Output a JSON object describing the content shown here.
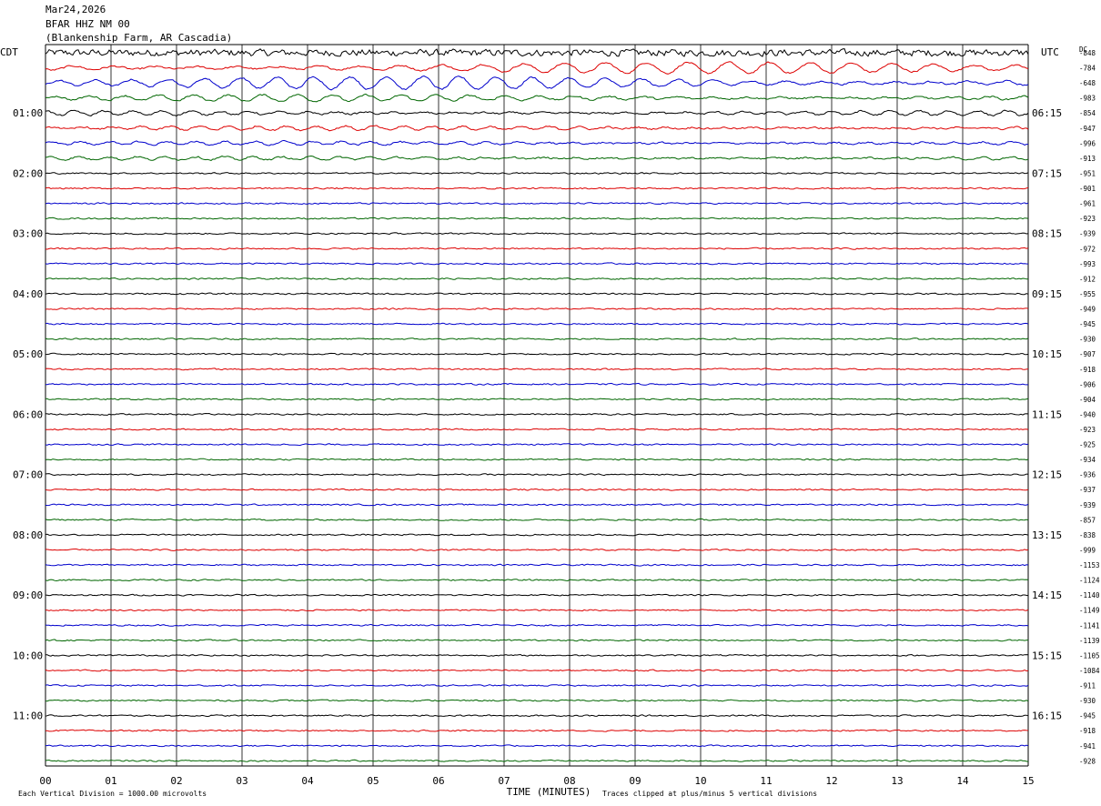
{
  "header": {
    "date": "Mar24,2026",
    "station": "BFAR HHZ NM 00",
    "location": "(Blankenship Farm, AR Cascadia)"
  },
  "chart_data": {
    "type": "line",
    "title": "BFAR HHZ NM 00",
    "left_timezone": "CDT",
    "right_timezone": "UTC",
    "dc_label": "DC",
    "xlabel": "TIME (MINUTES)",
    "x_ticks": [
      "00",
      "01",
      "02",
      "03",
      "04",
      "05",
      "06",
      "07",
      "08",
      "09",
      "10",
      "11",
      "12",
      "13",
      "14",
      "15"
    ],
    "xlim": [
      0,
      15
    ],
    "left_hour_labels": [
      "01:00",
      "02:00",
      "03:00",
      "04:00",
      "05:00",
      "06:00",
      "07:00",
      "08:00",
      "09:00",
      "10:00",
      "11:00"
    ],
    "right_hour_labels": [
      "06:15",
      "07:15",
      "08:15",
      "09:15",
      "10:15",
      "11:15",
      "12:15",
      "13:15",
      "14:15",
      "15:15",
      "16:15"
    ],
    "dc_offsets": [
      "-848",
      "-784",
      "-648",
      "-983",
      "-854",
      "-947",
      "-996",
      "-913",
      "-951",
      "-901",
      "-961",
      "-923",
      "-939",
      "-972",
      "-993",
      "-912",
      "-955",
      "-949",
      "-945",
      "-930",
      "-907",
      "-918",
      "-906",
      "-904",
      "-940",
      "-923",
      "-925",
      "-934",
      "-936",
      "-937",
      "-939",
      "-857",
      "-838",
      "-999",
      "-1153",
      "-1124",
      "-1140",
      "-1149",
      "-1141",
      "-1139",
      "-1105",
      "-1084",
      "-911",
      "-930",
      "-945",
      "-918",
      "-941",
      "-928"
    ],
    "trace_colors": [
      "#000000",
      "#dd0000",
      "#0000cc",
      "#006600"
    ],
    "trace_minutes": 15,
    "footer_left": "Each Vertical Division = 1000.00 microvolts",
    "footer_right": "Traces clipped at plus/minus 5 vertical divisions",
    "grid": true
  }
}
